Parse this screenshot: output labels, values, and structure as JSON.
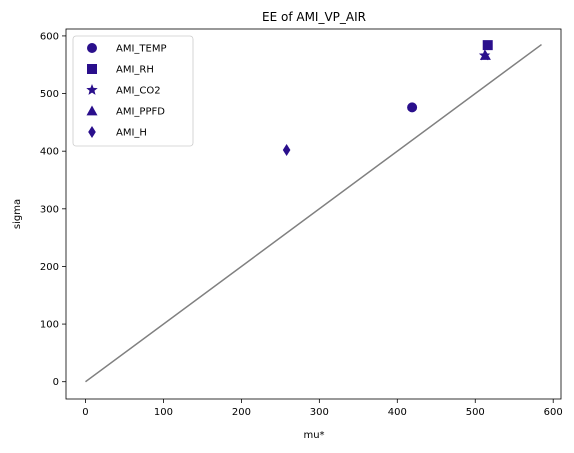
{
  "chart_data": {
    "type": "scatter",
    "title": "EE of AMI_VP_AIR",
    "xlabel": "mu*",
    "ylabel": "sigma",
    "xlim": [
      -25,
      610
    ],
    "ylim": [
      -30,
      612
    ],
    "xticks": [
      0,
      100,
      200,
      300,
      400,
      500,
      600
    ],
    "yticks": [
      0,
      100,
      200,
      300,
      400,
      500,
      600
    ],
    "grid": false,
    "legend_position": "top-left",
    "marker_color": "#2a0f8c",
    "reference_line": {
      "x": [
        0,
        585
      ],
      "y": [
        0,
        585
      ],
      "color": "#808080"
    },
    "series": [
      {
        "name": "AMI_TEMP",
        "marker": "circle",
        "x": [
          419
        ],
        "y": [
          476
        ]
      },
      {
        "name": "AMI_RH",
        "marker": "square",
        "x": [
          516
        ],
        "y": [
          584
        ]
      },
      {
        "name": "AMI_CO2",
        "marker": "star",
        "x": [
          512
        ],
        "y": [
          566
        ]
      },
      {
        "name": "AMI_PPFD",
        "marker": "triangle",
        "x": [
          513
        ],
        "y": [
          566
        ]
      },
      {
        "name": "AMI_H",
        "marker": "diamond",
        "x": [
          258
        ],
        "y": [
          402
        ]
      }
    ]
  }
}
